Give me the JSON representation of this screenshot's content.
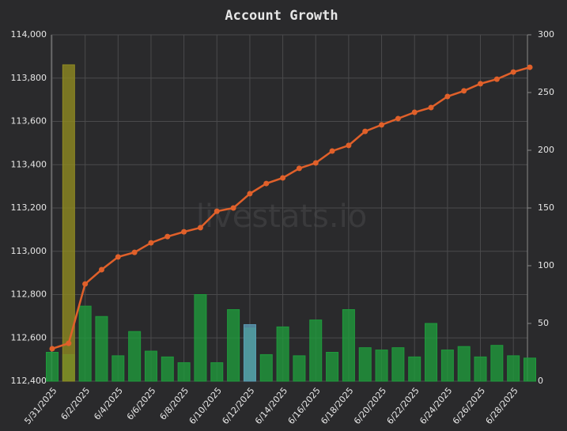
{
  "chart_data": {
    "type": "bar-line",
    "title": "Account Growth",
    "watermark": "livestats.io",
    "categories": [
      "5/31/2025",
      null,
      "6/2/2025",
      null,
      "6/4/2025",
      null,
      "6/6/2025",
      null,
      "6/8/2025",
      null,
      "6/10/2025",
      null,
      "6/12/2025",
      null,
      "6/14/2025",
      null,
      "6/16/2025",
      null,
      "6/18/2025",
      null,
      "6/20/2025",
      null,
      "6/22/2025",
      null,
      "6/24/2025",
      null,
      "6/26/2025",
      null,
      "6/28/2025",
      null
    ],
    "series": [
      {
        "type": "line",
        "color": "#e0602a",
        "values": [
          112550,
          112575,
          112849,
          112915,
          112974,
          112995,
          113039,
          113068,
          113090,
          113109,
          113185,
          113200,
          113266,
          113313,
          113339,
          113383,
          113408,
          113463,
          113489,
          113554,
          113584,
          113613,
          113642,
          113664,
          113715,
          113741,
          113774,
          113795,
          113828,
          113850
        ]
      },
      {
        "type": "bar",
        "axis": "y2",
        "color": "#1f9a3c",
        "values": [
          25,
          23,
          65,
          56,
          22,
          43,
          26,
          21,
          16,
          75,
          16,
          62,
          46,
          23,
          47,
          22,
          53,
          25,
          62,
          29,
          27,
          29,
          21,
          50,
          27,
          30,
          21,
          31,
          22,
          20
        ]
      },
      {
        "type": "bar",
        "axis": "y2",
        "color": "#8f8a22",
        "values": [
          null,
          274,
          null,
          null,
          null,
          null,
          null,
          null,
          null,
          null,
          null,
          null,
          null,
          null,
          null,
          null,
          null,
          null,
          null,
          null,
          null,
          null,
          null,
          null,
          null,
          null,
          null,
          null,
          null,
          null
        ]
      },
      {
        "type": "bar",
        "axis": "y2",
        "color": "#5b9bb5",
        "values": [
          null,
          null,
          null,
          null,
          null,
          null,
          null,
          null,
          null,
          null,
          null,
          null,
          49,
          null,
          null,
          null,
          null,
          null,
          null,
          null,
          null,
          null,
          null,
          null,
          null,
          null,
          null,
          null,
          null,
          null
        ]
      }
    ],
    "ylim": [
      112400,
      114000
    ],
    "yticks": [
      {
        "value": 112400,
        "label": "112,400"
      },
      {
        "value": 112600,
        "label": "112,600"
      },
      {
        "value": 112800,
        "label": "112,800"
      },
      {
        "value": 113000,
        "label": "113,000"
      },
      {
        "value": 113200,
        "label": "113,200"
      },
      {
        "value": 113400,
        "label": "113,400"
      },
      {
        "value": 113600,
        "label": "113,600"
      },
      {
        "value": 113800,
        "label": "113,800"
      },
      {
        "value": 114000,
        "label": "114,000"
      }
    ],
    "y2lim": [
      0,
      300
    ],
    "y2ticks": [
      0,
      50,
      100,
      150,
      200,
      250,
      300
    ],
    "grid": true
  }
}
